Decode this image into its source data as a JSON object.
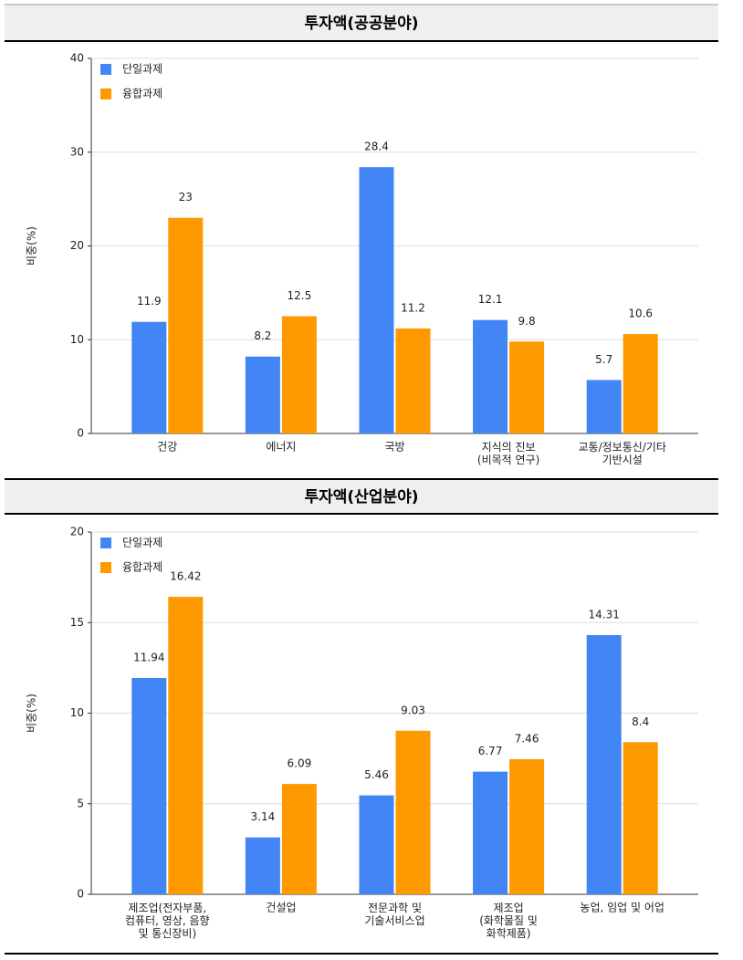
{
  "chart_data": [
    {
      "type": "bar",
      "title": "투자액(공공분야)",
      "y_label": "비중(%)",
      "categories": [
        "건강",
        "에너지",
        "국방",
        "지식의 진보\n(비목적 연구)",
        "교통/정보통신/기타\n기반시설"
      ],
      "series": [
        {
          "name": "단일과제",
          "color": "#4285f4",
          "values": [
            11.9,
            8.2,
            28.4,
            12.1,
            5.7
          ]
        },
        {
          "name": "융합과제",
          "color": "#ff9900",
          "values": [
            23,
            12.5,
            11.2,
            9.8,
            10.6
          ]
        }
      ],
      "ylim": [
        0,
        40
      ],
      "yticks": [
        0,
        10,
        20,
        30,
        40
      ],
      "grid": true
    },
    {
      "type": "bar",
      "title": "투자액(산업분야)",
      "y_label": "비중(%)",
      "categories": [
        "제조업(전자부품,\n컴퓨터, 영상, 음향\n및 통신장비)",
        "건설업",
        "전문과학 및\n기술서비스업",
        "제조업\n(화학물질 및\n화학제품)",
        "농업, 임업 및 어업"
      ],
      "series": [
        {
          "name": "단일과제",
          "color": "#4285f4",
          "values": [
            11.94,
            3.14,
            5.46,
            6.77,
            14.31
          ]
        },
        {
          "name": "융합과제",
          "color": "#ff9900",
          "values": [
            16.42,
            6.09,
            9.03,
            7.46,
            8.4
          ]
        }
      ],
      "ylim": [
        0,
        20
      ],
      "yticks": [
        0,
        5,
        10,
        15,
        20
      ],
      "grid": true
    }
  ]
}
